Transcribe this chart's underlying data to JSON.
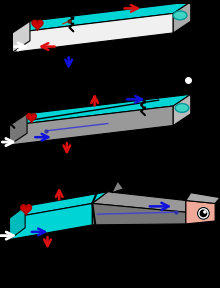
{
  "background": "#000000",
  "fig_width": 2.2,
  "fig_height": 2.88,
  "dpi": 100,
  "cyan": "#00d4d4",
  "cyan_dark": "#00bbbb",
  "gray_front": "#aaaaaa",
  "gray_side": "#888888",
  "gray_dark": "#666666",
  "white_face": "#f0f0f0",
  "white_face2": "#e8e8e8",
  "pink": "#f0a898",
  "red_arrow": "#dd1111",
  "blue_arrow": "#1111dd",
  "heart_color": "#cc0000",
  "teal_circle": "#40d4c4"
}
